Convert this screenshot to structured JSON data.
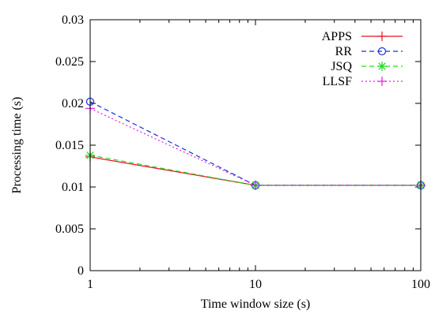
{
  "chart_data": {
    "type": "line",
    "title": "",
    "xlabel": "Time window size (s)",
    "ylabel": "Processing time (s)",
    "xscale": "log",
    "xlim": [
      1,
      100
    ],
    "ylim": [
      0,
      0.03
    ],
    "x_ticks": [
      {
        "value": 1,
        "label": "1"
      },
      {
        "value": 10,
        "label": "10"
      },
      {
        "value": 100,
        "label": "100"
      }
    ],
    "y_ticks": [
      {
        "value": 0,
        "label": "0"
      },
      {
        "value": 0.005,
        "label": "0.005"
      },
      {
        "value": 0.01,
        "label": "0.01"
      },
      {
        "value": 0.015,
        "label": "0.015"
      },
      {
        "value": 0.02,
        "label": "0.02"
      },
      {
        "value": 0.025,
        "label": "0.025"
      },
      {
        "value": 0.03,
        "label": "0.03"
      }
    ],
    "x": [
      1,
      10,
      100
    ],
    "grid": false,
    "legend_position": "top-right",
    "series": [
      {
        "name": "APPS",
        "values": [
          0.0136,
          0.0102,
          0.0102
        ],
        "color": "#e8121c",
        "dash": "solid",
        "marker": "plus"
      },
      {
        "name": "RR",
        "values": [
          0.0202,
          0.0102,
          0.0102
        ],
        "color": "#1a2fd6",
        "dash": "dashed",
        "marker": "circle"
      },
      {
        "name": "JSQ",
        "values": [
          0.0138,
          0.0102,
          0.0102
        ],
        "color": "#1ed91e",
        "dash": "dashed",
        "marker": "star"
      },
      {
        "name": "LLSF",
        "values": [
          0.0194,
          0.0102,
          0.0102
        ],
        "color": "#e01ee0",
        "dash": "dotted",
        "marker": "plus"
      }
    ]
  }
}
